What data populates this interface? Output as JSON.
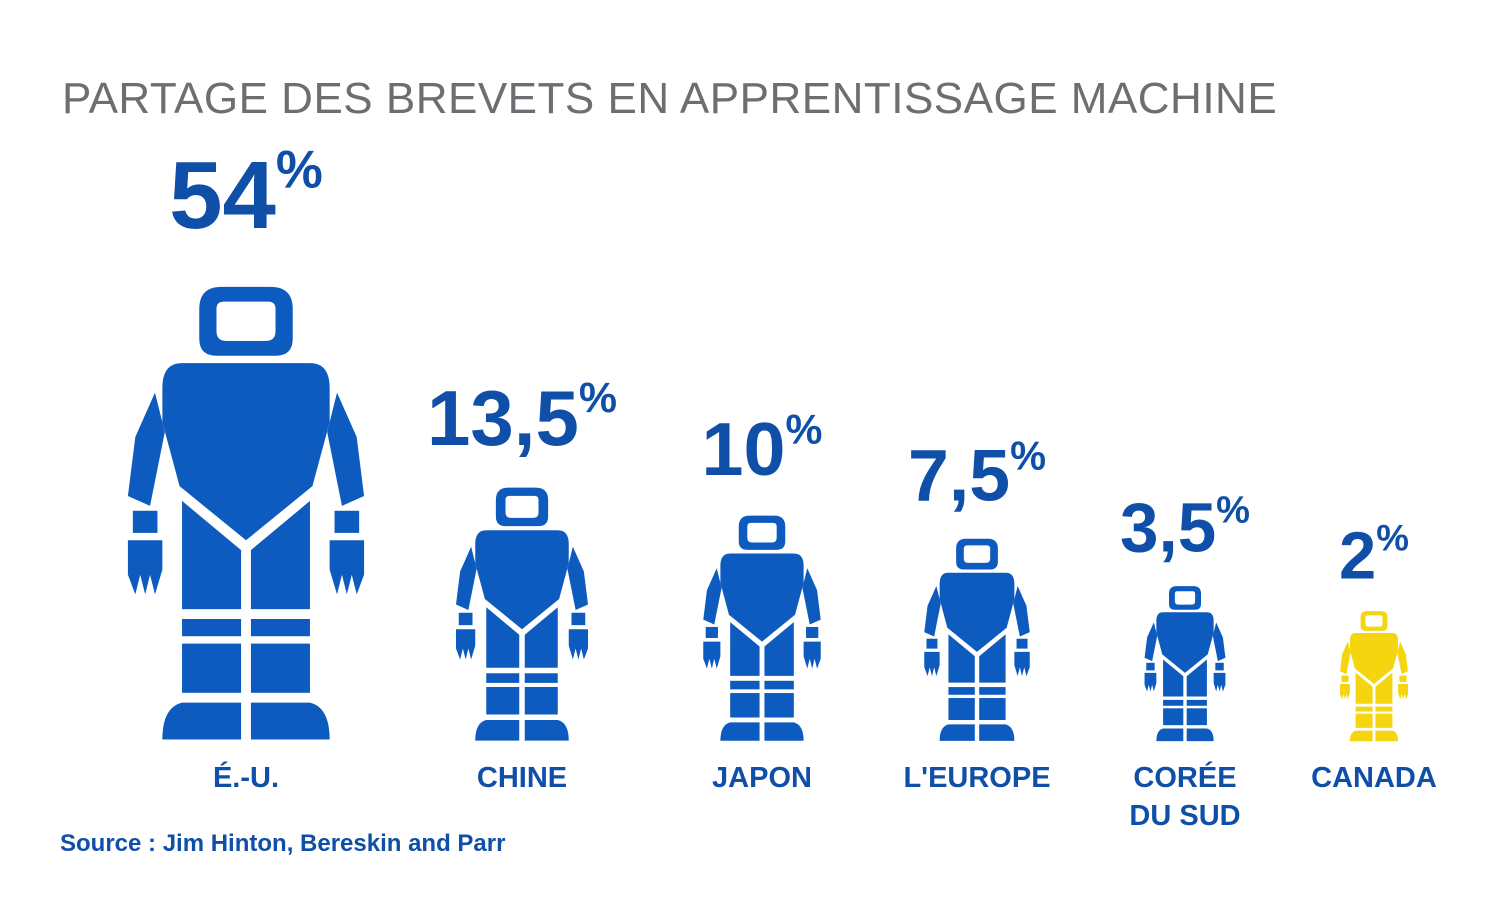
{
  "title": "PARTAGE DES BREVETS EN APPRENTISSAGE MACHINE",
  "source": "Source : Jim Hinton, Bereskin and Parr",
  "colors": {
    "primary": "#0d5bbf",
    "highlight": "#f5d510",
    "title": "#6d6e71",
    "label": "#0f4fa8"
  },
  "chart_data": {
    "type": "bar",
    "title": "PARTAGE DES BREVETS EN APPRENTISSAGE MACHINE",
    "unit": "%",
    "categories": [
      "É.-U.",
      "CHINE",
      "JAPON",
      "L'EUROPE",
      "CORÉE\nDU SUD",
      "CANADA"
    ],
    "values": [
      54,
      13.5,
      10,
      7.5,
      3.5,
      2
    ],
    "value_labels": [
      "54",
      "13,5",
      "10",
      "7,5",
      "3,5",
      "2"
    ],
    "highlight": "CANADA",
    "marker": "robot-icon"
  }
}
